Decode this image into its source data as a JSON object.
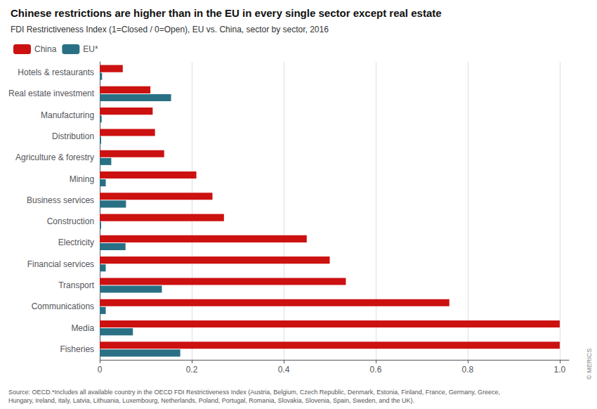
{
  "chart_data": {
    "type": "bar",
    "orientation": "horizontal",
    "title": "Chinese restrictions are higher than in the EU in every single sector except real estate",
    "subtitle": "FDI Restrictiveness Index (1=Closed / 0=Open), EU vs. China, sector by sector, 2016",
    "categories": [
      "Hotels & restaurants",
      "Real estate investment",
      "Manufacturing",
      "Distribution",
      "Agriculture & forestry",
      "Mining",
      "Business services",
      "Construction",
      "Electricity",
      "Financial services",
      "Transport",
      "Communications",
      "Media",
      "Fisheries"
    ],
    "series": [
      {
        "name": "China",
        "color": "#cc1111",
        "values": [
          0.05,
          0.11,
          0.115,
          0.12,
          0.14,
          0.21,
          0.245,
          0.27,
          0.45,
          0.5,
          0.535,
          0.76,
          1.0,
          1.0
        ]
      },
      {
        "name": "EU*",
        "color": "#2a7085",
        "values": [
          0.005,
          0.155,
          0.004,
          0.003,
          0.025,
          0.013,
          0.057,
          0.003,
          0.056,
          0.013,
          0.135,
          0.013,
          0.072,
          0.175
        ]
      }
    ],
    "xlim": [
      0,
      1.02
    ],
    "xticks": [
      0,
      0.2,
      0.4,
      0.6,
      0.8,
      {
        "value": 1.0,
        "label": "1.0"
      }
    ],
    "grid": true,
    "legend": "upper left",
    "annotations": [
      "Source: OECD.*Includes all available country in the OECD FDI Restrictiveness Index (Austria, Belgium, Czech Republic, Denmark, Estonia, Finland, France, Germany, Greece,\nHungary, Ireland, Italy, Latvia, Lithuania, Luxembourg, Netherlands, Poland, Portugal, Romania, Slovakia, Slovenia, Spain, Sweden, and the UK).",
      "© MERICS"
    ]
  }
}
